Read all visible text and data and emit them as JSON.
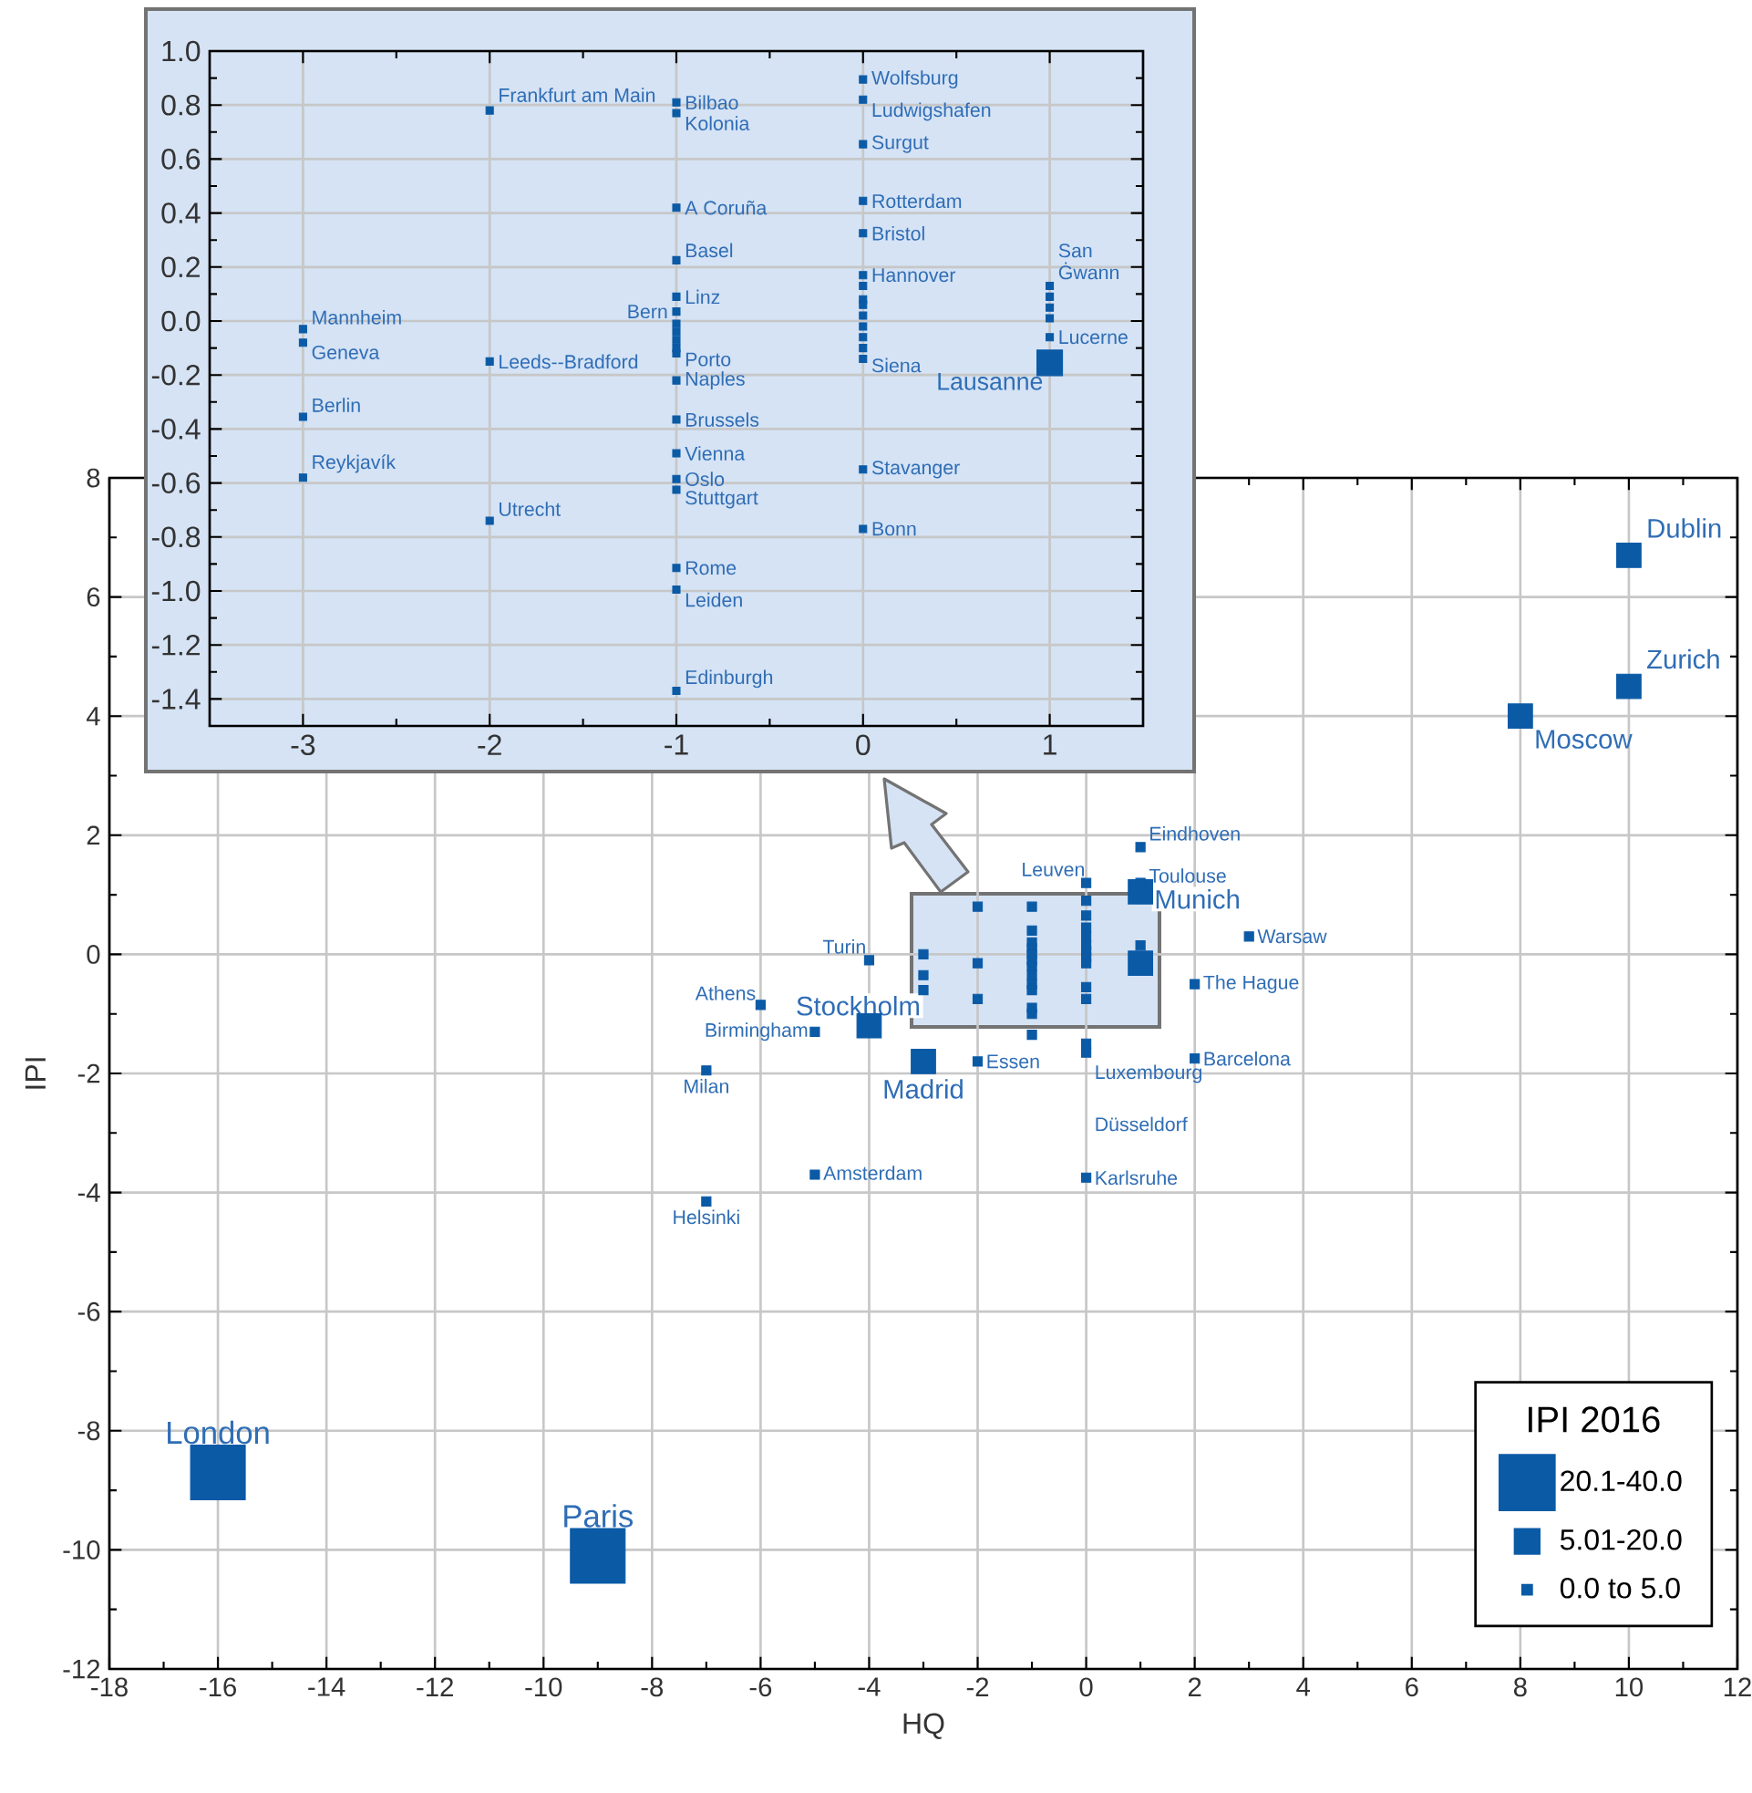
{
  "chart_data": [
    {
      "type": "scatter",
      "xlabel": "HQ",
      "ylabel": "IPI",
      "legend_title": "IPI 2016",
      "legend": "bottom right",
      "grid": true,
      "marker": "square",
      "xlim": [
        -18,
        12
      ],
      "xticks": [
        -18,
        -16,
        -14,
        -12,
        -10,
        -8,
        -6,
        -4,
        -2,
        0,
        2,
        4,
        6,
        8,
        10,
        12
      ],
      "ylim": [
        -12,
        8
      ],
      "yticks": [
        -12,
        -10,
        -8,
        -6,
        -4,
        -2,
        0,
        2,
        4,
        6,
        8
      ],
      "series": [
        {
          "name": "20.1-40.0",
          "color": "#0b5aa6",
          "x": [
            -16,
            -9
          ],
          "values": [
            -8.7,
            -10.1
          ]
        },
        {
          "name": "5.01-20.0",
          "color": "#0b5aa6",
          "x": [
            10,
            10,
            8,
            1,
            1,
            -4,
            -3
          ],
          "values": [
            6.7,
            4.5,
            4.0,
            1.05,
            -0.15,
            -1.2,
            -1.8
          ]
        },
        {
          "name": "0.0 to 5.0",
          "color": "#0b5aa6",
          "x": [
            1,
            1,
            0,
            3,
            2,
            2,
            -4,
            -6,
            -5,
            -7,
            -5,
            -7,
            -2,
            0,
            0,
            0,
            -3,
            -3,
            -3,
            -2,
            -2,
            -2,
            -1,
            -1,
            -1,
            -1,
            -1,
            -1,
            -1,
            -1,
            -1,
            -1,
            -1,
            -1,
            -1,
            0,
            0,
            0,
            0,
            0,
            0,
            0,
            0,
            0,
            0,
            1
          ],
          "values": [
            1.8,
            1.2,
            1.2,
            0.3,
            -0.5,
            -1.75,
            -0.1,
            -0.85,
            -1.3,
            -1.95,
            -3.7,
            -4.15,
            -1.8,
            -1.5,
            -1.65,
            -3.75,
            0.0,
            -0.35,
            -0.6,
            0.8,
            -0.15,
            -0.75,
            0.8,
            0.4,
            0.2,
            0.1,
            0.0,
            -0.1,
            -0.2,
            -0.35,
            -0.5,
            -0.6,
            -0.9,
            -1.0,
            -1.35,
            0.9,
            0.65,
            0.45,
            0.3,
            0.15,
            0.05,
            -0.05,
            -0.15,
            -0.55,
            -0.75,
            0.15
          ]
        }
      ],
      "annotations": [
        {
          "text": "London",
          "x": -16,
          "y": -8.7
        },
        {
          "text": "Paris",
          "x": -9,
          "y": -10.1
        },
        {
          "text": "Dublin",
          "x": 10,
          "y": 6.7
        },
        {
          "text": "Zurich",
          "x": 10,
          "y": 4.5
        },
        {
          "text": "Moscow",
          "x": 8,
          "y": 4.0
        },
        {
          "text": "Munich",
          "x": 1,
          "y": 1.05
        },
        {
          "text": "Stockholm",
          "x": -4,
          "y": -1.2
        },
        {
          "text": "Madrid",
          "x": -3,
          "y": -1.8
        },
        {
          "text": "Eindhoven",
          "x": 1,
          "y": 1.8
        },
        {
          "text": "Toulouse",
          "x": 1,
          "y": 1.2
        },
        {
          "text": "Leuven",
          "x": 0,
          "y": 1.2
        },
        {
          "text": "Warsaw",
          "x": 3,
          "y": 0.3
        },
        {
          "text": "The Hague",
          "x": 2,
          "y": -0.5
        },
        {
          "text": "Barcelona",
          "x": 2,
          "y": -1.75
        },
        {
          "text": "Turin",
          "x": -4,
          "y": -0.1
        },
        {
          "text": "Athens",
          "x": -6,
          "y": -0.85
        },
        {
          "text": "Birmingham",
          "x": -5,
          "y": -1.3
        },
        {
          "text": "Milan",
          "x": -7,
          "y": -1.95
        },
        {
          "text": "Amsterdam",
          "x": -5,
          "y": -3.7
        },
        {
          "text": "Helsinki",
          "x": -7,
          "y": -4.15
        },
        {
          "text": "Essen",
          "x": -2,
          "y": -1.8
        },
        {
          "text": "Luxembourg",
          "x": 0,
          "y": -1.5
        },
        "Düsseldorf",
        {
          "text": "Karlsruhe",
          "x": 0,
          "y": -3.75
        }
      ]
    },
    {
      "type": "scatter",
      "grid": true,
      "marker": "square",
      "xlim": [
        -3.5,
        1.5
      ],
      "xticks": [
        -3,
        -2,
        -1,
        0,
        1
      ],
      "ylim": [
        -1.5,
        1.0
      ],
      "yticks": [
        {
          "value": 1.0,
          "label": "1.0"
        },
        0.8,
        0.6,
        0.4,
        0.2,
        {
          "value": 0,
          "label": "0.0"
        },
        -0.2,
        -0.4,
        -0.6,
        -0.8,
        {
          "value": -1.0,
          "label": "-1.0"
        },
        -1.2,
        -1.4
      ],
      "series": [
        {
          "color": "#0b5aa6",
          "x": [
            1
          ],
          "values": [
            -0.155
          ]
        },
        {
          "color": "#0b5aa6",
          "x": [
            -3,
            -3,
            -3,
            -3,
            -2,
            -2,
            -2,
            -1,
            -1,
            -1,
            -1,
            -1,
            -1,
            -1,
            -1,
            -1,
            -1,
            -1,
            -1,
            -1,
            -1,
            -1,
            -1,
            -1,
            -1,
            -1,
            0,
            0,
            0,
            0,
            0,
            0,
            0,
            0,
            0,
            0,
            0,
            0,
            0,
            0,
            0,
            0,
            1,
            1,
            1,
            1,
            1
          ],
          "values": [
            -0.03,
            -0.08,
            -0.355,
            -0.58,
            0.78,
            -0.15,
            -0.74,
            0.81,
            0.77,
            0.42,
            0.225,
            0.09,
            0.035,
            -0.01,
            -0.04,
            -0.07,
            -0.1,
            -0.12,
            -0.22,
            -0.365,
            -0.49,
            -0.585,
            -0.625,
            -0.915,
            -0.995,
            -1.37,
            0.895,
            0.82,
            0.655,
            0.445,
            0.325,
            0.17,
            0.13,
            0.08,
            0.06,
            0.02,
            -0.02,
            -0.06,
            -0.1,
            -0.14,
            -0.55,
            -0.77,
            0.13,
            0.09,
            0.05,
            0.01,
            -0.06
          ]
        }
      ],
      "annotations": [
        {
          "text": "Mannheim",
          "x": -3,
          "y": -0.03
        },
        {
          "text": "Geneva",
          "x": -3,
          "y": -0.08
        },
        {
          "text": "Berlin",
          "x": -3,
          "y": -0.355
        },
        {
          "text": "Reykjavík",
          "x": -3,
          "y": -0.58
        },
        {
          "text": "Frankfurt am Main",
          "x": -2,
          "y": 0.78
        },
        {
          "text": "Leeds--Bradford",
          "x": -2,
          "y": -0.15
        },
        {
          "text": "Utrecht",
          "x": -2,
          "y": -0.74
        },
        {
          "text": "Bilbao",
          "x": -1,
          "y": 0.81
        },
        {
          "text": "Kolonia",
          "x": -1,
          "y": 0.77
        },
        {
          "text": "A Coruña",
          "x": -1,
          "y": 0.42
        },
        {
          "text": "Basel",
          "x": -1,
          "y": 0.225
        },
        {
          "text": "Linz",
          "x": -1,
          "y": 0.09
        },
        {
          "text": "Bern",
          "x": -1,
          "y": 0.035
        },
        {
          "text": "Porto",
          "x": -1,
          "y": -0.12
        },
        {
          "text": "Naples",
          "x": -1,
          "y": -0.22
        },
        {
          "text": "Brussels",
          "x": -1,
          "y": -0.365
        },
        {
          "text": "Vienna",
          "x": -1,
          "y": -0.49
        },
        {
          "text": "Oslo",
          "x": -1,
          "y": -0.585
        },
        {
          "text": "Stuttgart",
          "x": -1,
          "y": -0.625
        },
        {
          "text": "Rome",
          "x": -1,
          "y": -0.915
        },
        {
          "text": "Leiden",
          "x": -1,
          "y": -0.995
        },
        {
          "text": "Edinburgh",
          "x": -1,
          "y": -1.37
        },
        {
          "text": "Wolfsburg",
          "x": 0,
          "y": 0.895
        },
        {
          "text": "Ludwigshafen",
          "x": 0,
          "y": 0.82
        },
        {
          "text": "Surgut",
          "x": 0,
          "y": 0.655
        },
        {
          "text": "Rotterdam",
          "x": 0,
          "y": 0.445
        },
        {
          "text": "Bristol",
          "x": 0,
          "y": 0.325
        },
        {
          "text": "Hannover",
          "x": 0,
          "y": 0.17
        },
        {
          "text": "Siena",
          "x": 0,
          "y": -0.14
        },
        {
          "text": "Stavanger",
          "x": 0,
          "y": -0.55
        },
        {
          "text": "Bonn",
          "x": 0,
          "y": -0.77
        },
        {
          "text": "San Ġwann",
          "x": 1,
          "y": 0.13
        },
        {
          "text": "Lucerne",
          "x": 1,
          "y": -0.06
        },
        {
          "text": "Lausanne",
          "x": 1,
          "y": -0.155
        }
      ]
    }
  ]
}
